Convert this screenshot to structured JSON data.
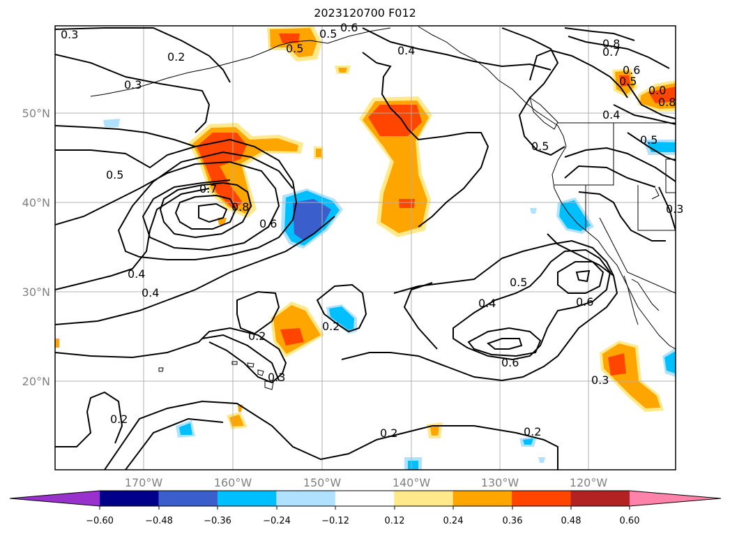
{
  "title": "2023120700 F012",
  "colors": {
    "land_outline": "#000000",
    "contour": "#000000",
    "grid": "#b0b0b0",
    "axis_label": "#808080"
  },
  "lat_labels": [
    "50°N",
    "40°N",
    "30°N",
    "20°N"
  ],
  "lon_labels": [
    "170°W",
    "160°W",
    "150°W",
    "140°W",
    "130°W",
    "120°W"
  ],
  "contour_labels": [
    "0.3",
    "0.5",
    "0.6",
    "0.2",
    "0.3",
    "0.5",
    "0.4",
    "0.8",
    "0.7",
    "0.6",
    "0.5",
    "0.0",
    "0.8",
    "0.4",
    "0.5",
    "0.5",
    "0.3",
    "0.5",
    "0.7",
    "0.8",
    "0.6",
    "0.4",
    "0.4",
    "0.2",
    "0.2",
    "0.3",
    "0.2",
    "0.2",
    "0.4",
    "0.5",
    "0.6",
    "0.6",
    "0.3",
    "0.2"
  ],
  "colorbar": {
    "colors": [
      "#9932cc",
      "#00008b",
      "#3a5fcd",
      "#00bfff",
      "#b0e2ff",
      "#ffffff",
      "#ffe98a",
      "#ffa500",
      "#ff4500",
      "#b22222",
      "#ff82ab"
    ],
    "ticks": [
      "−0.60",
      "−0.48",
      "−0.36",
      "−0.24",
      "−0.12",
      "0.12",
      "0.24",
      "0.36",
      "0.48",
      "0.60"
    ]
  }
}
